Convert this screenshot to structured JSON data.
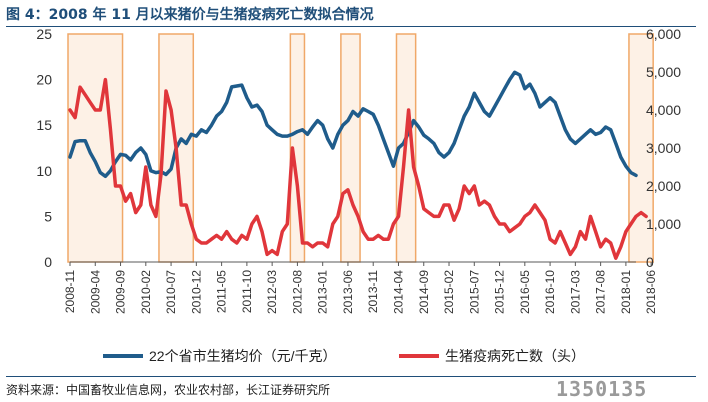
{
  "title": "图 4：2008 年 11 月以来猪价与生猪疫病死亡数拟合情况",
  "source": "资料来源：中国畜牧业信息网，农业农村部，长江证券研究所",
  "watermark": "1350135",
  "colors": {
    "price": "#1f5c8b",
    "deaths": "#e0363b",
    "band_fill": "#fdf1e6",
    "band_stroke": "#f0a868",
    "axis": "#595959"
  },
  "chart_data": {
    "type": "line",
    "y_left": {
      "min": 0,
      "max": 25,
      "ticks": [
        0,
        5,
        10,
        15,
        20,
        25
      ]
    },
    "y_right": {
      "min": 0,
      "max": 6000,
      "ticks": [
        "0",
        "1,000",
        "2,000",
        "3,000",
        "4,000",
        "5,000",
        "6,000"
      ]
    },
    "x_tick_labels": [
      "2008-11",
      "2009-04",
      "2009-09",
      "2010-02",
      "2010-07",
      "2010-12",
      "2011-05",
      "2011-10",
      "2012-03",
      "2012-08",
      "2013-01",
      "2013-06",
      "2013-11",
      "2014-04",
      "2014-09",
      "2015-02",
      "2015-07",
      "2015-12",
      "2016-05",
      "2016-10",
      "2017-03",
      "2017-08",
      "2018-01",
      "2018-06"
    ],
    "legend": {
      "position": "bottom"
    },
    "highlight_periods": [
      [
        "2008-11",
        "2009-09"
      ],
      [
        "2010-05",
        "2010-11"
      ],
      [
        "2012-07",
        "2012-09"
      ],
      [
        "2013-05",
        "2013-08"
      ],
      [
        "2014-04",
        "2014-07"
      ],
      [
        "2018-02",
        "2018-06"
      ]
    ],
    "series": [
      {
        "name": "22个省市生猪均价（元/千克）",
        "axis": "left",
        "values": [
          11.5,
          13.2,
          13.3,
          13.3,
          12.0,
          11.0,
          9.8,
          9.4,
          10.0,
          11.0,
          11.8,
          11.7,
          11.2,
          12.0,
          12.5,
          11.8,
          10.0,
          9.8,
          9.9,
          9.6,
          10.2,
          12.5,
          13.5,
          13.0,
          14.0,
          13.8,
          14.5,
          14.2,
          15.0,
          16.0,
          16.5,
          17.5,
          19.2,
          19.3,
          19.4,
          18.0,
          17.0,
          17.2,
          16.5,
          15.0,
          14.5,
          14.0,
          13.8,
          13.8,
          14.0,
          14.3,
          14.5,
          14.0,
          14.8,
          15.5,
          15.0,
          13.5,
          12.5,
          14.0,
          15.0,
          15.5,
          16.5,
          16.0,
          16.8,
          16.5,
          16.2,
          15.0,
          13.5,
          12.0,
          10.5,
          12.5,
          13.0,
          14.2,
          15.5,
          14.8,
          13.9,
          13.5,
          13.0,
          12.0,
          11.5,
          12.0,
          13.0,
          14.5,
          16.0,
          17.0,
          18.5,
          17.5,
          16.5,
          16.0,
          17.0,
          18.0,
          19.0,
          20.0,
          20.8,
          20.5,
          19.0,
          19.5,
          18.5,
          17.0,
          17.5,
          18.0,
          17.5,
          16.0,
          14.5,
          13.5,
          13.0,
          13.5,
          14.0,
          14.5,
          14.0,
          14.2,
          14.8,
          14.5,
          13.0,
          11.5,
          10.5,
          9.8,
          9.5
        ]
      },
      {
        "name": "生猪疫病死亡数（头）",
        "axis": "right",
        "values": [
          4000,
          3800,
          4600,
          4400,
          4200,
          4000,
          4000,
          4800,
          3500,
          2000,
          2000,
          1600,
          1800,
          1300,
          1500,
          2500,
          1500,
          1200,
          2300,
          4500,
          4000,
          3000,
          1500,
          1500,
          1000,
          600,
          500,
          500,
          600,
          700,
          600,
          800,
          600,
          500,
          700,
          600,
          1000,
          1200,
          800,
          200,
          300,
          200,
          800,
          1000,
          3000,
          2000,
          500,
          500,
          400,
          500,
          500,
          400,
          1000,
          1200,
          1800,
          1900,
          1500,
          1200,
          800,
          600,
          600,
          700,
          600,
          600,
          1000,
          1200,
          2500,
          4000,
          2500,
          2000,
          1400,
          1300,
          1200,
          1200,
          1500,
          1500,
          1100,
          1400,
          2000,
          1800,
          2000,
          1500,
          1600,
          1500,
          1200,
          1000,
          1000,
          800,
          900,
          1000,
          1200,
          1300,
          1500,
          1300,
          1100,
          600,
          500,
          800,
          500,
          200,
          400,
          800,
          600,
          1200,
          800,
          400,
          600,
          500,
          100,
          400,
          800,
          1000,
          1200,
          1300,
          1200
        ]
      }
    ]
  }
}
